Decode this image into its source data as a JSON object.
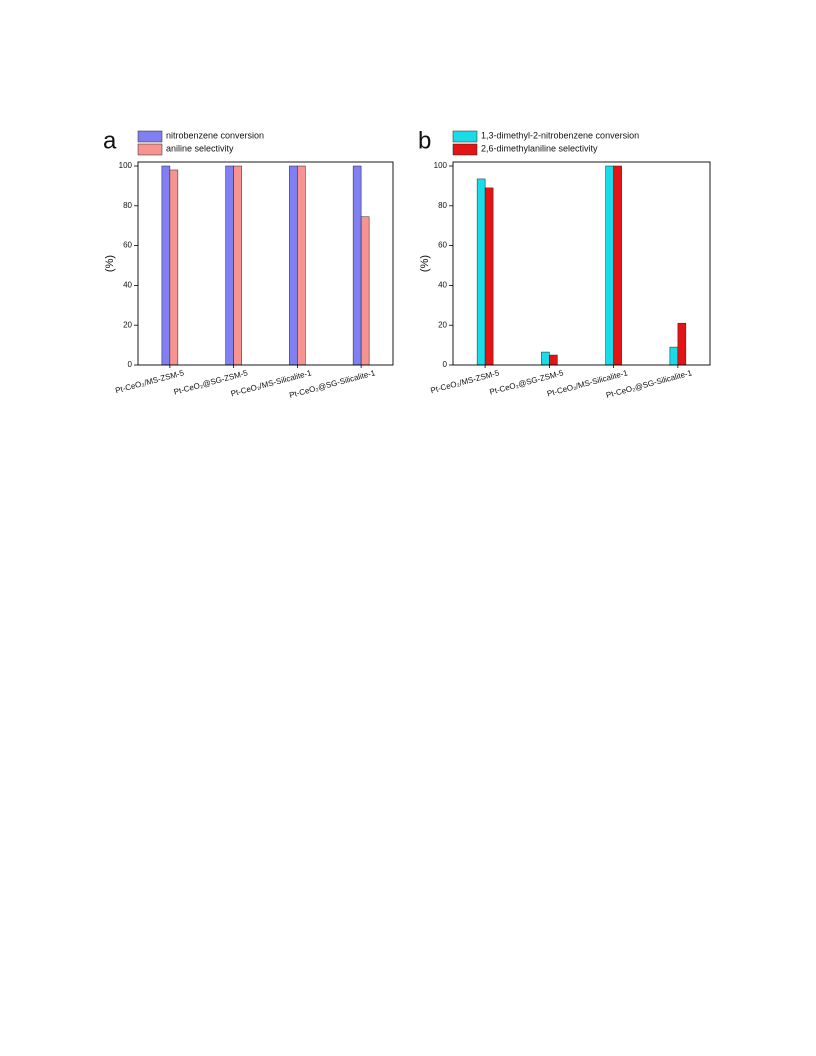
{
  "chart_data": [
    {
      "type": "bar",
      "label": "a",
      "ylabel": "(%)",
      "categories": [
        "Pt-CeO₂/MS-ZSM-5",
        "Pt-CeO₂@SG-ZSM-5",
        "Pt-CeO₂/MS-Silicalite-1",
        "Pt-CeO₂@SG-Silicalite-1"
      ],
      "series": [
        {
          "name": "nitrobenzene conversion",
          "color": "#8080f2",
          "values": [
            100,
            100,
            100,
            100
          ]
        },
        {
          "name": "aniline selectivity",
          "color": "#f79490",
          "values": [
            98,
            100,
            100,
            74.5
          ]
        }
      ],
      "ylim": [
        0,
        100
      ],
      "yticks": [
        0,
        20,
        40,
        60,
        80,
        100
      ],
      "legend": "top-left"
    },
    {
      "type": "bar",
      "label": "b",
      "ylabel": "(%)",
      "categories": [
        "Pt-CeO₂/MS-ZSM-5",
        "Pt-CeO₂@SG-ZSM-5",
        "Pt-CeO₂/MS-Silicalite-1",
        "Pt-CeO₂@SG-Silicalite-1"
      ],
      "series": [
        {
          "name": "1,3-dimethyl-2-nitrobenzene conversion",
          "color": "#1adbe8",
          "values": [
            93.5,
            6.5,
            100,
            9
          ]
        },
        {
          "name": "2,6-dimethylaniline selectivity",
          "color": "#e31414",
          "values": [
            89,
            5,
            100,
            21
          ]
        }
      ],
      "ylim": [
        0,
        100
      ],
      "yticks": [
        0,
        20,
        40,
        60,
        80,
        100
      ],
      "legend": "top-left"
    }
  ]
}
